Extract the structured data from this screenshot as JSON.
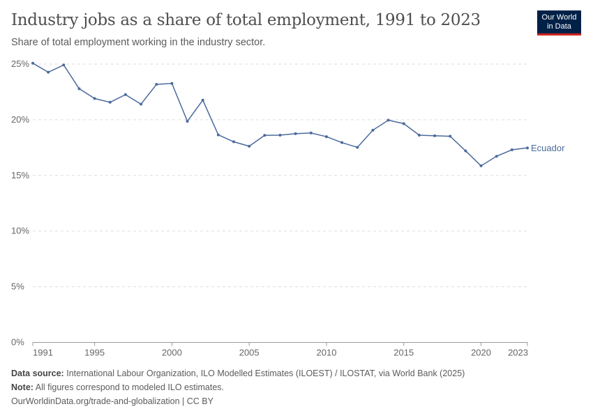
{
  "title": "Industry jobs as a share of total employment, 1991 to 2023",
  "subtitle": "Share of total employment working in the industry sector.",
  "logo": {
    "line1": "Our World",
    "line2": "in Data"
  },
  "footer": {
    "source_label": "Data source:",
    "source": "International Labour Organization, ILO Modelled Estimates (ILOEST) / ILOSTAT, via World Bank (2025)",
    "note_label": "Note:",
    "note": "All figures correspond to modeled ILO estimates.",
    "url": "OurWorldinData.org/trade-and-globalization | CC BY"
  },
  "colors": {
    "series": "#4c6a9c",
    "grid": "#dddddd",
    "text": "#666666"
  },
  "chart_data": {
    "type": "line",
    "x": [
      1991,
      1992,
      1993,
      1994,
      1995,
      1996,
      1997,
      1998,
      1999,
      2000,
      2001,
      2002,
      2003,
      2004,
      2005,
      2006,
      2007,
      2008,
      2009,
      2010,
      2011,
      2012,
      2013,
      2014,
      2015,
      2016,
      2017,
      2018,
      2019,
      2020,
      2021,
      2022,
      2023
    ],
    "series": [
      {
        "name": "Ecuador",
        "values": [
          25.08,
          24.27,
          24.92,
          22.79,
          21.91,
          21.57,
          22.26,
          21.4,
          23.18,
          23.26,
          19.86,
          21.76,
          18.64,
          18.02,
          17.62,
          18.6,
          18.62,
          18.75,
          18.81,
          18.48,
          17.95,
          17.52,
          19.06,
          19.96,
          19.65,
          18.62,
          18.56,
          18.52,
          17.2,
          15.86,
          16.72,
          17.3,
          17.47
        ]
      }
    ],
    "xlim": [
      1991,
      2023
    ],
    "ylim": [
      0,
      25
    ],
    "xticks": [
      {
        "v": 1991,
        "label": "1991"
      },
      {
        "v": 1995,
        "label": "1995"
      },
      {
        "v": 2000,
        "label": "2000"
      },
      {
        "v": 2005,
        "label": "2005"
      },
      {
        "v": 2010,
        "label": "2010"
      },
      {
        "v": 2015,
        "label": "2015"
      },
      {
        "v": 2020,
        "label": "2020"
      },
      {
        "v": 2023,
        "label": "2023"
      }
    ],
    "yticks": [
      {
        "v": 0,
        "label": "0%"
      },
      {
        "v": 5,
        "label": "5%"
      },
      {
        "v": 10,
        "label": "10%"
      },
      {
        "v": 15,
        "label": "15%"
      },
      {
        "v": 20,
        "label": "20%"
      },
      {
        "v": 25,
        "label": "25%"
      }
    ],
    "grid": "horizontal dashed",
    "legend": "inline label at line end"
  }
}
